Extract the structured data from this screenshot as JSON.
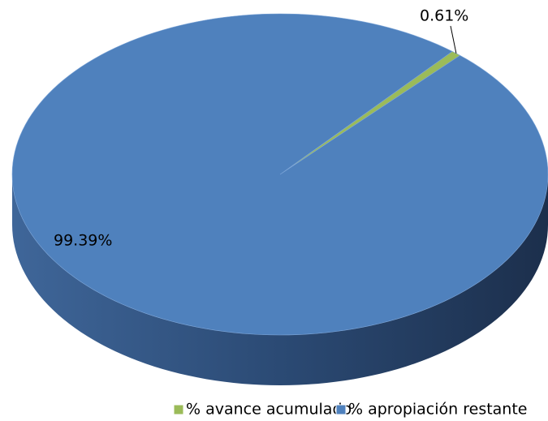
{
  "chart_data": {
    "type": "pie",
    "categories": [
      "% avance acumulado",
      "% apropiación restante"
    ],
    "values": [
      0.61,
      99.39
    ],
    "value_labels": [
      "0.61%",
      "99.39%"
    ],
    "colors": [
      "#9bbb59",
      "#4f81bd"
    ]
  }
}
